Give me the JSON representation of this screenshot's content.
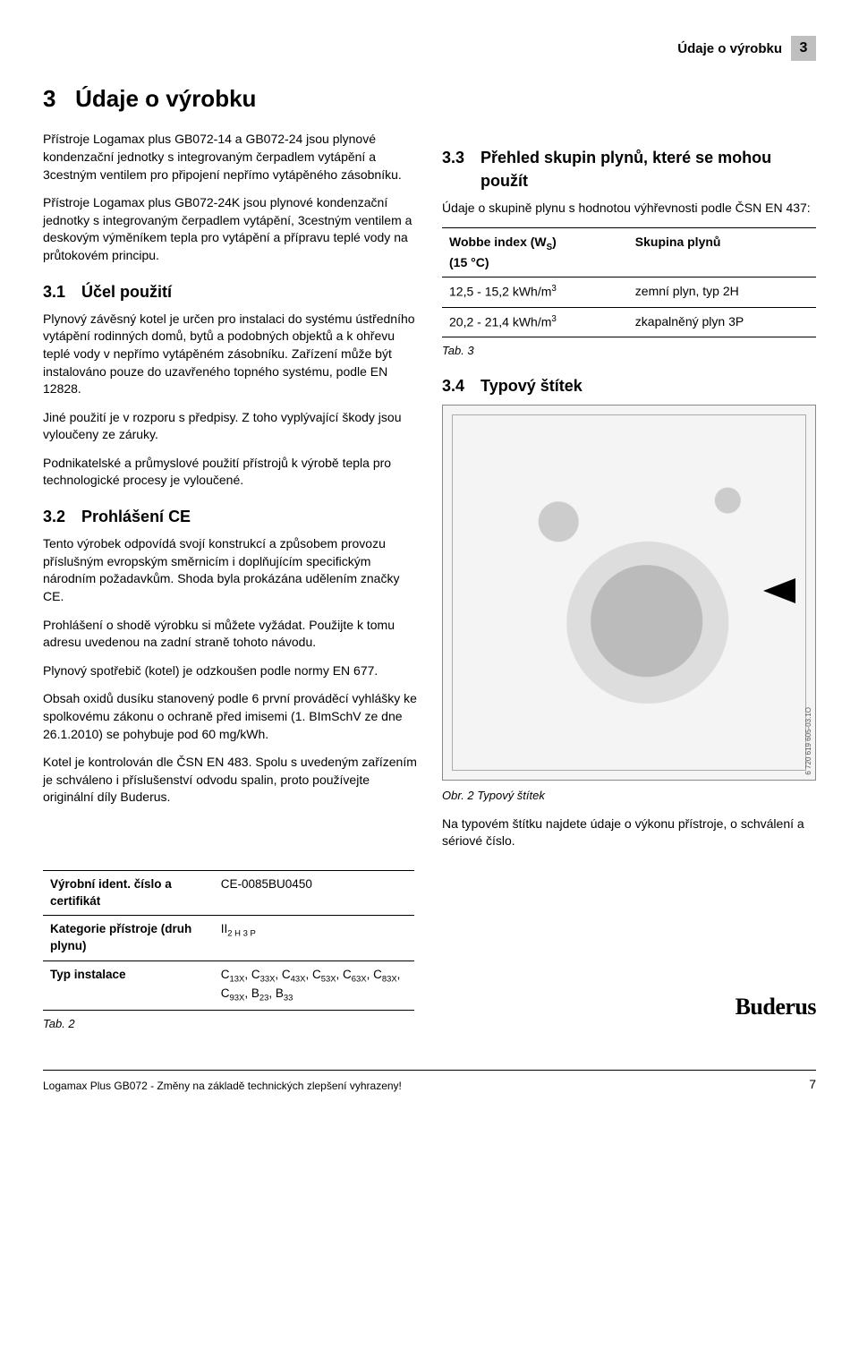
{
  "header": {
    "section": "Údaje o výrobku",
    "section_num": "3"
  },
  "title": {
    "num": "3",
    "text": "Údaje o výrobku"
  },
  "intro1": "Přístroje Logamax plus GB072-14 a GB072-24 jsou plynové kondenzační jednotky s integrovaným čerpadlem vytápění a 3cestným ventilem pro připojení nepřímo vytápěného zásobníku.",
  "intro2": "Přístroje Logamax plus GB072-24K jsou plynové kondenzační jednotky s integrovaným čerpadlem vytápění, 3cestným ventilem a deskovým výměníkem tepla pro vytápění a přípravu teplé vody na průtokovém principu.",
  "s31": {
    "num": "3.1",
    "title": "Účel použití",
    "p1": "Plynový závěsný kotel je určen pro instalaci do systému ústředního vytápění rodinných domů, bytů a podobných objektů a k ohřevu teplé vody v nepřímo vytápěném zásobníku. Zařízení může být instalováno pouze do uzavřeného topného systému, podle EN 12828.",
    "p2": "Jiné použití je v rozporu s předpisy. Z toho vyplývající škody jsou vyloučeny ze záruky.",
    "p3": "Podnikatelské a průmyslové použití přístrojů k výrobě tepla pro technologické procesy je vyloučené."
  },
  "s32": {
    "num": "3.2",
    "title": "Prohlášení CE",
    "p1": "Tento výrobek odpovídá svojí konstrukcí a způsobem provozu příslušným evropským směrnicím i doplňujícím specifickým národním požadavkům. Shoda byla prokázána udělením značky CE.",
    "p2": "Prohlášení o shodě výrobku si můžete vyžádat. Použijte k tomu adresu uvedenou na zadní straně tohoto návodu.",
    "p3": "Plynový spotřebič (kotel) je odzkoušen podle normy EN 677.",
    "p4": "Obsah oxidů dusíku stanovený podle 6 první prováděcí vyhlášky ke spolkovému zákonu o ochraně před imisemi (1. BImSchV ze dne 26.1.2010) se pohybuje pod 60 mg/kWh.",
    "p5": "Kotel je kontrolován dle ČSN EN 483. Spolu s uvedeným zařízením je schváleno i příslušenství odvodu spalin, proto používejte originální díly Buderus."
  },
  "tab2": {
    "caption": "Tab. 2",
    "rows": [
      {
        "label": "Výrobní ident. číslo a certifikát",
        "value": "CE-0085BU0450"
      },
      {
        "label": "Kategorie přístroje (druh plynu)",
        "value_html": "II<sub>2 H 3 P</sub>"
      },
      {
        "label": "Typ instalace",
        "value_html": "C<sub>13X</sub>, C<sub>33X</sub>, C<sub>43X</sub>, C<sub>53X</sub>, C<sub>63X</sub>, C<sub>83X</sub>, C<sub>93X</sub>, B<sub>23</sub>, B<sub>33</sub>"
      }
    ]
  },
  "s33": {
    "num": "3.3",
    "title": "Přehled skupin plynů, které se mohou použít",
    "p1": "Údaje o skupině plynu s hodnotou výhřevnosti podle ČSN EN 437:"
  },
  "tab3": {
    "header1_html": "Wobbe index (W<sub>S</sub>)<br>(15 °C)",
    "header2": "Skupina plynů",
    "rows": [
      {
        "c1_html": "12,5 - 15,2 kWh/m<sup>3</sup>",
        "c2": "zemní plyn, typ 2H"
      },
      {
        "c1_html": "20,2 - 21,4 kWh/m<sup>3</sup>",
        "c2": "zkapalněný plyn 3P"
      }
    ],
    "caption": "Tab. 3"
  },
  "s34": {
    "num": "3.4",
    "title": "Typový štítek",
    "fig_side": "6 720 619 605-03.1O",
    "fig_caption": "Obr. 2   Typový štítek",
    "p1": "Na typovém štítku najdete údaje o výkonu přístroje, o schválení a sériové číslo."
  },
  "footer": {
    "left": "Logamax Plus GB072 - Změny na základě technických zlepšení vyhrazeny!",
    "logo": "Buderus",
    "page": "7"
  }
}
